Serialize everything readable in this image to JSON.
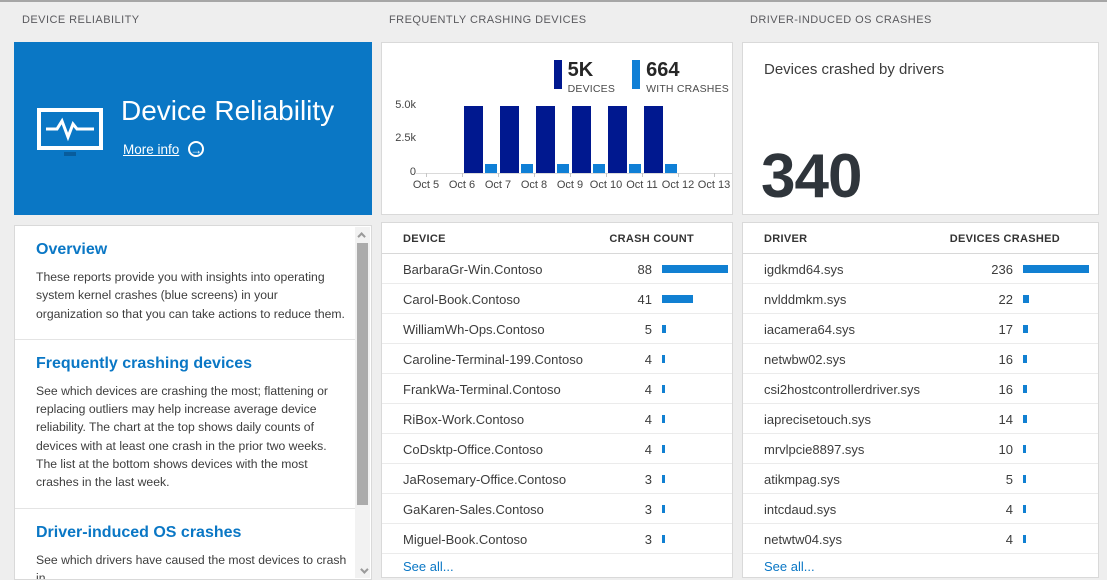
{
  "colors": {
    "tile_blue": "#0a77c5",
    "heading_blue": "#0a77c5",
    "dark_navy": "#00188f",
    "accent_blue": "#0f7fd6",
    "bar_blue": "#1180d2",
    "big_number": "#2f353b"
  },
  "device_reliability": {
    "header": "DEVICE RELIABILITY",
    "tile": {
      "title": "Device Reliability",
      "link": "More info"
    },
    "sections": [
      {
        "heading": "Overview",
        "body": "These reports provide you with insights into operating system kernel crashes (blue screens) in your organization so that you can take actions to reduce them."
      },
      {
        "heading": "Frequently crashing devices",
        "body": "See which devices are crashing the most; flattening or replacing outliers may help increase average device reliability. The chart at the top shows daily counts of devices with at least one crash in the prior two weeks. The list at the bottom shows devices with the most crashes in the last week."
      },
      {
        "heading": "Driver-induced OS crashes",
        "body": "See which drivers have caused the most devices to crash in"
      }
    ]
  },
  "frequently_crashing": {
    "header": "FREQUENTLY CRASHING DEVICES",
    "table": {
      "columns": [
        "DEVICE",
        "CRASH COUNT"
      ],
      "rows": [
        [
          "BarbaraGr-Win.Contoso",
          88
        ],
        [
          "Carol-Book.Contoso",
          41
        ],
        [
          "WilliamWh-Ops.Contoso",
          5
        ],
        [
          "Caroline-Terminal-199.Contoso",
          4
        ],
        [
          "FrankWa-Terminal.Contoso",
          4
        ],
        [
          "RiBox-Work.Contoso",
          4
        ],
        [
          "CoDsktp-Office.Contoso",
          4
        ],
        [
          "JaRosemary-Office.Contoso",
          3
        ],
        [
          "GaKaren-Sales.Contoso",
          3
        ],
        [
          "Miguel-Book.Contoso",
          3
        ]
      ],
      "see_all": "See all..."
    }
  },
  "driver_crashes": {
    "header": "DRIVER-INDUCED OS CRASHES",
    "tile": {
      "caption": "Devices crashed by drivers",
      "value": "340"
    },
    "table": {
      "columns": [
        "DRIVER",
        "DEVICES CRASHED"
      ],
      "rows": [
        [
          "igdkmd64.sys",
          236
        ],
        [
          "nvlddmkm.sys",
          22
        ],
        [
          "iacamera64.sys",
          17
        ],
        [
          "netwbw02.sys",
          16
        ],
        [
          "csi2hostcontrollerdriver.sys",
          16
        ],
        [
          "iaprecisetouch.sys",
          14
        ],
        [
          "mrvlpcie8897.sys",
          10
        ],
        [
          "atikmpag.sys",
          5
        ],
        [
          "intcdaud.sys",
          4
        ],
        [
          "netwtw04.sys",
          4
        ]
      ],
      "see_all": "See all..."
    }
  },
  "chart_data": {
    "type": "bar",
    "title": "",
    "xlabel": "",
    "ylabel": "",
    "categories": [
      "Oct 5",
      "Oct 6",
      "Oct 7",
      "Oct 8",
      "Oct 9",
      "Oct 10",
      "Oct 11",
      "Oct 12",
      "Oct 13"
    ],
    "series": [
      {
        "name": "DEVICES",
        "color": "#00188f",
        "values": [
          null,
          5000,
          5000,
          5000,
          5000,
          5000,
          5000,
          null,
          null
        ]
      },
      {
        "name": "WITH CRASHES",
        "color": "#0f7fd6",
        "values": [
          null,
          664,
          664,
          664,
          664,
          664,
          664,
          null,
          null
        ]
      }
    ],
    "legend": [
      {
        "value": "5K",
        "label": "DEVICES"
      },
      {
        "value": "664",
        "label": "WITH CRASHES"
      }
    ],
    "yticks": [
      "0",
      "2.5k",
      "5.0k"
    ],
    "ylim": [
      0,
      5000
    ],
    "grid": false,
    "legend_position": "top-right"
  }
}
